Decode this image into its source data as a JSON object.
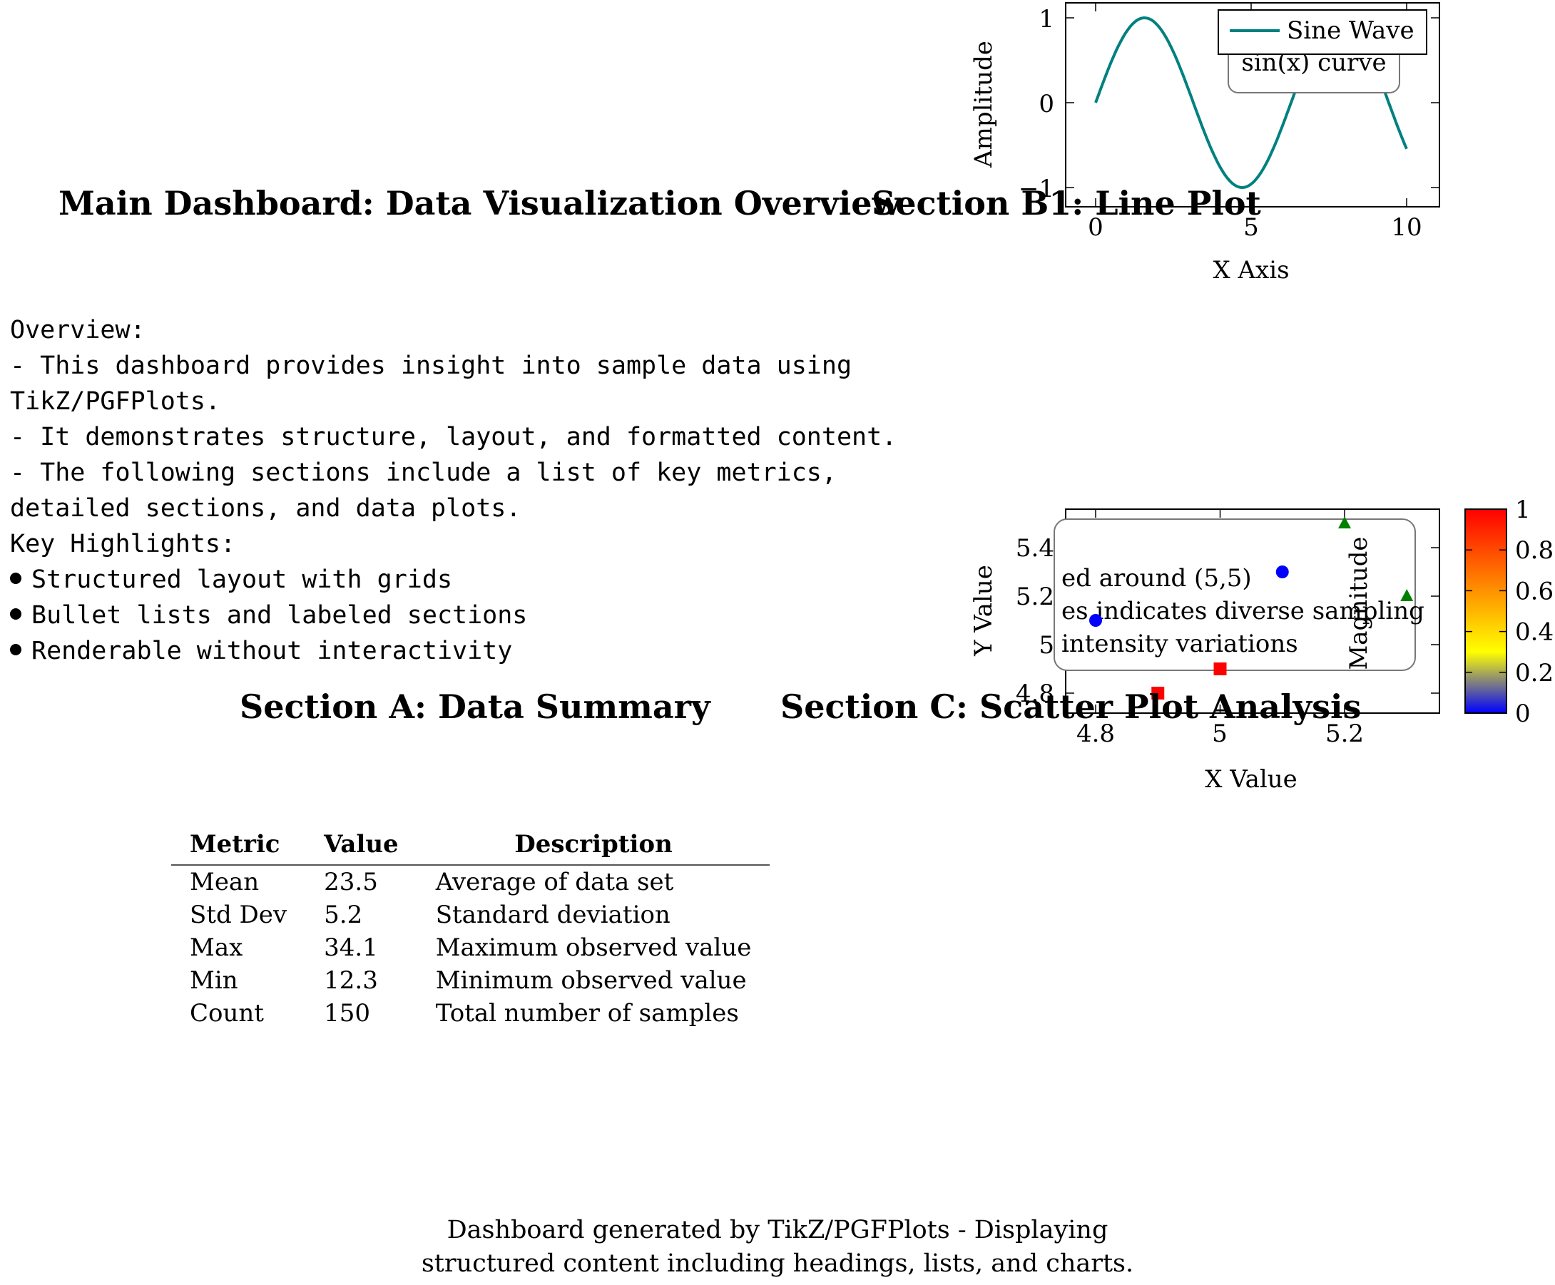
{
  "headings": {
    "main": "Main Dashboard: Data Visualization Overview",
    "section_b1": "Section B1: Line Plot",
    "section_a": "Section A: Data Summary",
    "section_c": "Section C: Scatter Plot Analysis"
  },
  "overview": {
    "lines": [
      "Overview:",
      "- This dashboard provides insight into sample data using",
      "TikZ/PGFPlots.",
      "- It demonstrates structure, layout, and formatted content.",
      "- The following sections include a list of key metrics,",
      "detailed sections, and data plots.",
      "Key Highlights:"
    ],
    "bullets": [
      "Structured layout with grids",
      "Bullet lists and labeled sections",
      "Renderable without interactivity"
    ]
  },
  "summary_table": {
    "headers": [
      "Metric",
      "Value",
      "Description"
    ],
    "rows": [
      [
        "Mean",
        "23.5",
        "Average of data set"
      ],
      [
        "Std Dev",
        "5.2",
        "Standard deviation"
      ],
      [
        "Max",
        "34.1",
        "Maximum observed value"
      ],
      [
        "Min",
        "12.3",
        "Minimum observed value"
      ],
      [
        "Count",
        "150",
        "Total number of samples"
      ]
    ]
  },
  "footer": {
    "line1": "Dashboard generated by TikZ/PGFPlots - Displaying",
    "line2": "structured content including headings, lists, and charts."
  },
  "chart_data": [
    {
      "type": "line",
      "xlabel": "X Axis",
      "ylabel": "Amplitude",
      "xlim": [
        0,
        10
      ],
      "ylim": [
        -1.2,
        1.2
      ],
      "xticks": [
        "0",
        "5",
        "10"
      ],
      "yticks": [
        "−1",
        "0",
        "1"
      ],
      "legend_position": "top-right",
      "annotation": "sin(x) curve",
      "series": [
        {
          "name": "Sine Wave",
          "color": "#008080",
          "x": [
            0,
            0.5,
            1,
            1.5,
            2,
            2.5,
            3,
            3.5,
            4,
            4.5,
            5,
            5.5,
            6,
            6.5,
            7,
            7.5,
            8,
            8.5,
            9,
            9.5,
            10
          ],
          "y": [
            0,
            0.479,
            0.841,
            0.997,
            0.909,
            0.598,
            0.141,
            -0.351,
            -0.757,
            -0.978,
            -0.959,
            -0.706,
            -0.279,
            0.215,
            0.657,
            0.938,
            0.989,
            0.798,
            0.412,
            -0.075,
            -0.544
          ]
        }
      ]
    },
    {
      "type": "scatter",
      "xlabel": "X Value",
      "ylabel": "Y Value",
      "colorbar_label": "Magnitude",
      "xlim": [
        4.7,
        5.3
      ],
      "ylim": [
        4.73,
        5.57
      ],
      "xticks": [
        "4.8",
        "5",
        "5.2"
      ],
      "yticks": [
        "4.8",
        "5",
        "5.2",
        "5.4"
      ],
      "colorbar_ticks": [
        "0",
        "0.2",
        "0.4",
        "0.6",
        "0.8",
        "1"
      ],
      "colorbar_colors": [
        "#0000ff",
        "#ffff00",
        "#ff0000"
      ],
      "annotation_lines": [
        "ed around (5,5)",
        "es indicates diverse sampling",
        "intensity variations"
      ],
      "series": [
        {
          "marker": "circle",
          "color": "#0000ff",
          "points": [
            [
              4.8,
              5.1
            ],
            [
              5.1,
              5.3
            ]
          ]
        },
        {
          "marker": "square",
          "color": "#ff0000",
          "points": [
            [
              4.9,
              4.8
            ],
            [
              5.0,
              4.9
            ]
          ]
        },
        {
          "marker": "triangle",
          "color": "#008000",
          "points": [
            [
              5.2,
              5.5
            ],
            [
              5.3,
              5.2
            ]
          ]
        }
      ]
    }
  ]
}
